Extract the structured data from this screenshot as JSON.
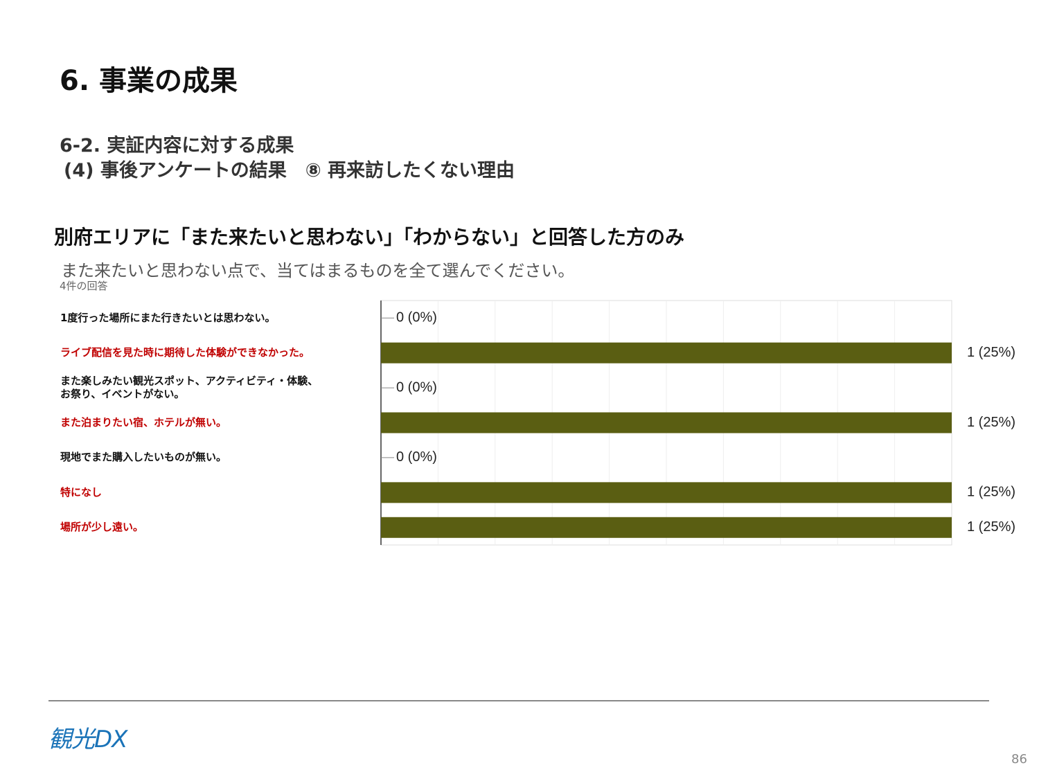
{
  "header": {
    "title": "6. 事業の成果",
    "subtitle_1": "6-2. 実証内容に対する成果",
    "subtitle_2": "(4) 事後アンケートの結果　⑧ 再来訪したくない理由"
  },
  "section_heading": "別府エリアに「また来たいと思わない」「わからない」と回答した方のみ",
  "question": "また来たいと思わない点で、当てはまるものを全て選んでください。",
  "response_count": "4件の回答",
  "chart_data": {
    "type": "bar",
    "orientation": "horizontal",
    "categories": [
      "1度行った場所にまた行きたいとは思わない。",
      "ライブ配信を見た時に期待した体験ができなかった。",
      "また楽しみたい観光スポット、アクティビティ・体験、\nお祭り、イベントがない。",
      "また泊まりたい宿、ホテルが無い。",
      "現地でまた購入したいものが無い。",
      "特になし",
      "場所が少し遠い。"
    ],
    "category_colors": [
      "#111111",
      "#c00000",
      "#111111",
      "#c00000",
      "#111111",
      "#c00000",
      "#c00000"
    ],
    "values": [
      0,
      1,
      0,
      1,
      0,
      1,
      1
    ],
    "value_labels": [
      "0 (0%)",
      "1 (25%)",
      "0 (0%)",
      "1 (25%)",
      "0 (0%)",
      "1 (25%)",
      "1 (25%)"
    ],
    "color": "#5a5e12",
    "xlim": [
      0,
      1
    ],
    "grid": true
  },
  "footer": {
    "logo": "観光DX",
    "page_number": "86"
  }
}
